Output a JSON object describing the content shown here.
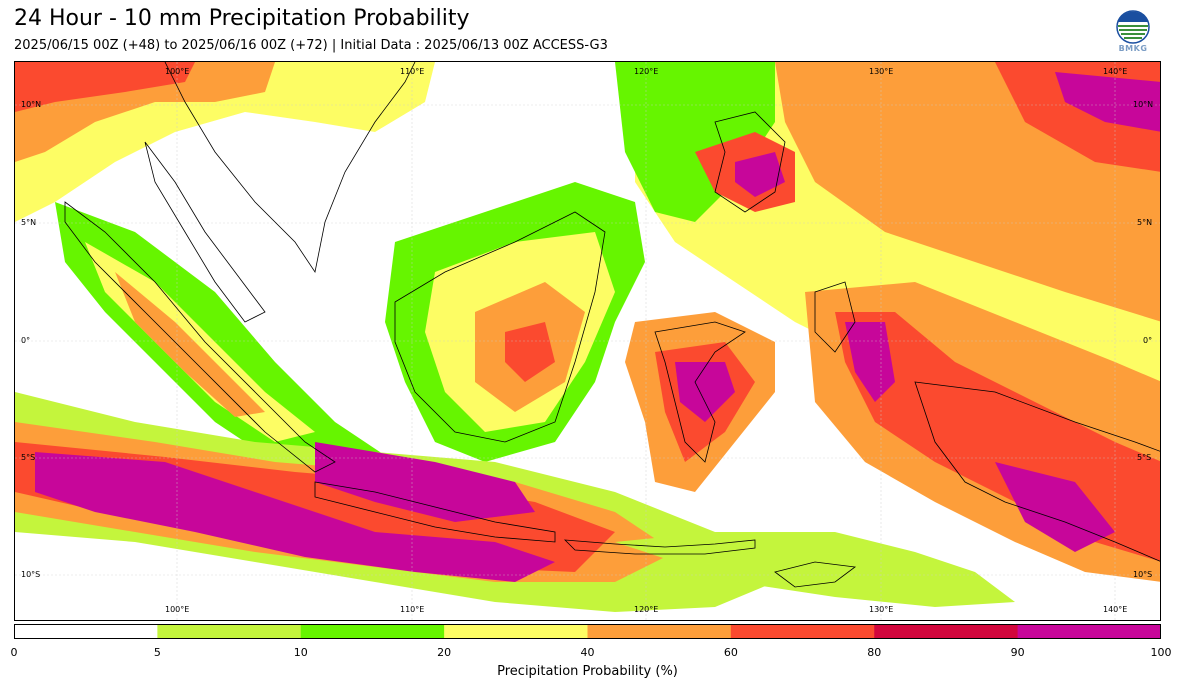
{
  "header": {
    "title": "24 Hour - 10 mm Precipitation Probability",
    "subtitle": "2025/06/15 00Z (+48) to 2025/06/16 00Z (+72) | Initial Data : 2025/06/13 00Z ACCESS-G3",
    "logo_text": "BMKG"
  },
  "map": {
    "lon_range": [
      93,
      142
    ],
    "lat_range": [
      -12,
      12
    ],
    "graticule": "on",
    "top_lon_labels": [
      "100°E",
      "110°E",
      "120°E",
      "130°E",
      "140°E"
    ],
    "bottom_lon_labels": [
      "100°E",
      "110°E",
      "120°E",
      "130°E",
      "140°E"
    ],
    "left_lat_labels": [
      "10°N",
      "5°N",
      "0°",
      "5°S",
      "10°S"
    ],
    "right_lat_labels": [
      "10°N",
      "5°N",
      "0°",
      "5°S",
      "10°S"
    ]
  },
  "colorbar": {
    "label": "Precipitation Probability (%)",
    "ticks": [
      "0",
      "5",
      "10",
      "20",
      "40",
      "60",
      "80",
      "90",
      "100"
    ],
    "colors": [
      "#ffffff",
      "#c4f53c",
      "#66f500",
      "#fdfd64",
      "#fd9e3a",
      "#fb4a2f",
      "#d2063d",
      "#c7069a"
    ]
  }
}
